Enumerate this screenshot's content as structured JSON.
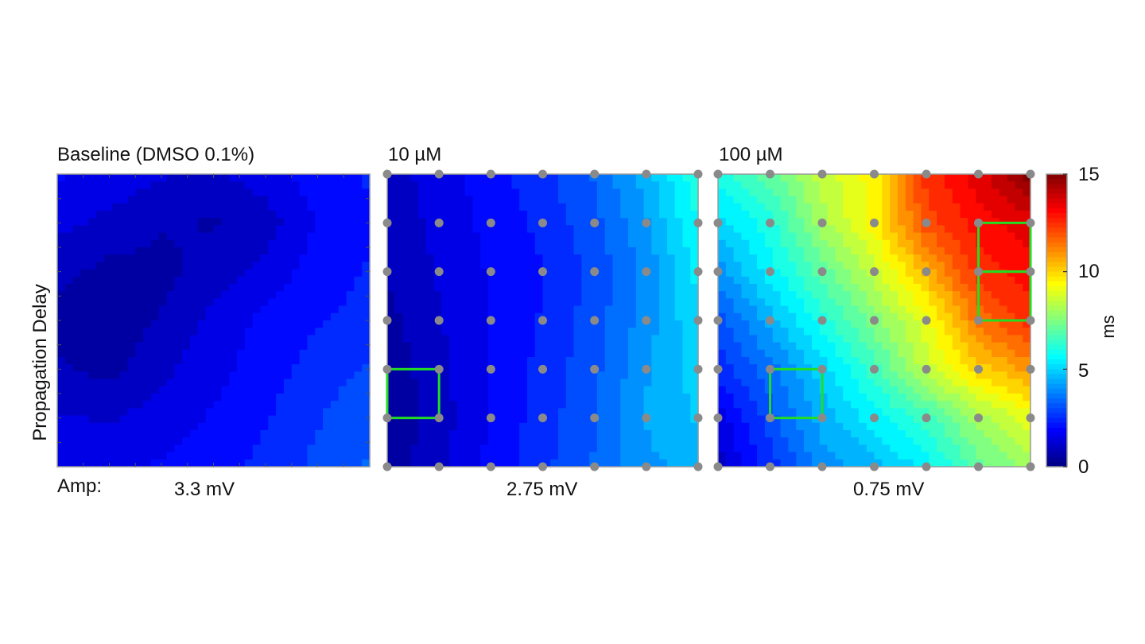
{
  "chart_data": [
    {
      "type": "heatmap",
      "title": "Baseline (DMSO 0.1%)",
      "grid_rows": 7,
      "grid_cols": 7,
      "values": [
        [
          1.8,
          1.6,
          1.3,
          1.2,
          1.5,
          2.0,
          2.3
        ],
        [
          1.4,
          1.1,
          0.8,
          0.7,
          1.0,
          1.8,
          2.2
        ],
        [
          0.9,
          0.6,
          0.6,
          1.0,
          1.4,
          2.0,
          2.3
        ],
        [
          0.6,
          0.4,
          0.8,
          1.4,
          1.9,
          2.2,
          2.4
        ],
        [
          0.8,
          0.6,
          1.1,
          1.6,
          2.0,
          2.5,
          2.8
        ],
        [
          1.3,
          1.2,
          1.5,
          1.8,
          2.2,
          2.7,
          3.2
        ],
        [
          1.7,
          1.7,
          1.8,
          2.0,
          2.4,
          2.9,
          3.3
        ]
      ],
      "electrodes_shown": false,
      "amplitude": "3.3 mV",
      "highlight_boxes": []
    },
    {
      "type": "heatmap",
      "title": "10 µM",
      "grid_rows": 7,
      "grid_cols": 7,
      "values": [
        [
          1.0,
          1.5,
          2.0,
          2.6,
          3.3,
          4.5,
          6.2
        ],
        [
          0.9,
          1.4,
          1.9,
          2.4,
          3.1,
          4.2,
          5.8
        ],
        [
          0.8,
          1.3,
          1.8,
          2.2,
          2.9,
          3.9,
          5.4
        ],
        [
          0.6,
          1.2,
          1.8,
          2.3,
          3.0,
          4.0,
          5.2
        ],
        [
          0.4,
          1.1,
          1.8,
          2.4,
          3.1,
          4.2,
          5.0
        ],
        [
          0.3,
          1.0,
          1.8,
          2.5,
          3.2,
          4.3,
          4.8
        ],
        [
          0.5,
          1.1,
          1.9,
          2.6,
          3.3,
          4.1,
          4.5
        ]
      ],
      "electrodes_shown": true,
      "amplitude": "2.75 mV",
      "highlight_boxes": [
        {
          "row": 4,
          "col": 0,
          "rows": 1,
          "cols": 1
        }
      ]
    },
    {
      "type": "heatmap",
      "title": "100 µM",
      "grid_rows": 7,
      "grid_cols": 7,
      "values": [
        [
          6.0,
          7.0,
          8.5,
          9.5,
          12.5,
          13.5,
          15.0
        ],
        [
          5.0,
          6.0,
          8.0,
          9.5,
          12.0,
          13.0,
          13.5
        ],
        [
          4.0,
          5.5,
          7.0,
          8.5,
          10.5,
          12.5,
          13.0
        ],
        [
          3.0,
          4.5,
          6.0,
          7.5,
          9.0,
          11.5,
          12.5
        ],
        [
          2.5,
          3.5,
          5.0,
          6.5,
          8.5,
          10.0,
          11.0
        ],
        [
          1.5,
          3.0,
          4.5,
          5.5,
          6.5,
          8.0,
          9.0
        ],
        [
          1.0,
          2.5,
          4.0,
          4.5,
          5.5,
          7.0,
          8.0
        ]
      ],
      "electrodes_shown": true,
      "amplitude": "0.75 mV",
      "highlight_boxes": [
        {
          "row": 4,
          "col": 1,
          "rows": 1,
          "cols": 1
        },
        {
          "row": 1,
          "col": 5,
          "rows": 1,
          "cols": 1
        },
        {
          "row": 2,
          "col": 5,
          "rows": 1,
          "cols": 1
        }
      ]
    }
  ],
  "ylabel": "Propagation Delay",
  "amp_label": "Amp:",
  "colorbar": {
    "min": 0,
    "max": 15,
    "ticks": [
      "0",
      "5",
      "10",
      "15"
    ],
    "tick_values": [
      0,
      5,
      10,
      15
    ],
    "label": "ms",
    "colormap": "jet"
  },
  "colors": {
    "electrode": "#8a8a8a",
    "highlight": "#22dd22",
    "axes": "#9a9a9a"
  }
}
